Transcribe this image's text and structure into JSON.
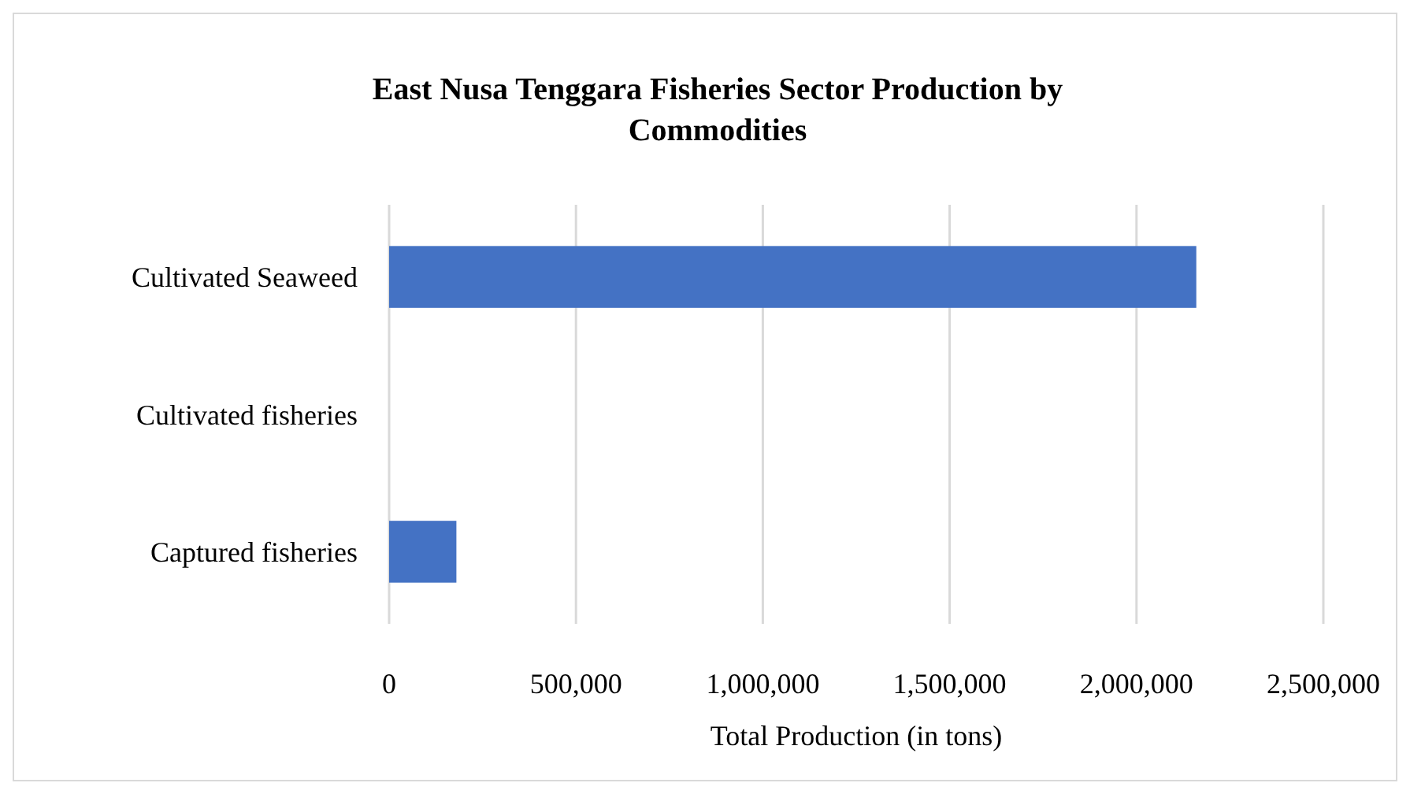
{
  "chart_data": {
    "type": "bar",
    "orientation": "horizontal",
    "title": "East Nusa Tenggara Fisheries Sector Production by Commodities",
    "xlabel": "Total Production (in tons)",
    "categories": [
      "Cultivated Seaweed",
      "Cultivated fisheries",
      "Captured fisheries"
    ],
    "values": [
      2160000,
      0,
      180000
    ],
    "color": "#4472c4",
    "xlim": [
      0,
      2500000
    ],
    "xticks": [
      0,
      {
        "value": 500000,
        "label": "500,000"
      },
      {
        "value": 1000000,
        "label": "1,000,000"
      },
      {
        "value": 1500000,
        "label": "1,500,000"
      },
      {
        "value": 2000000,
        "label": "2,000,000"
      },
      {
        "value": 2500000,
        "label": "2,500,000"
      }
    ],
    "grid": "x"
  }
}
